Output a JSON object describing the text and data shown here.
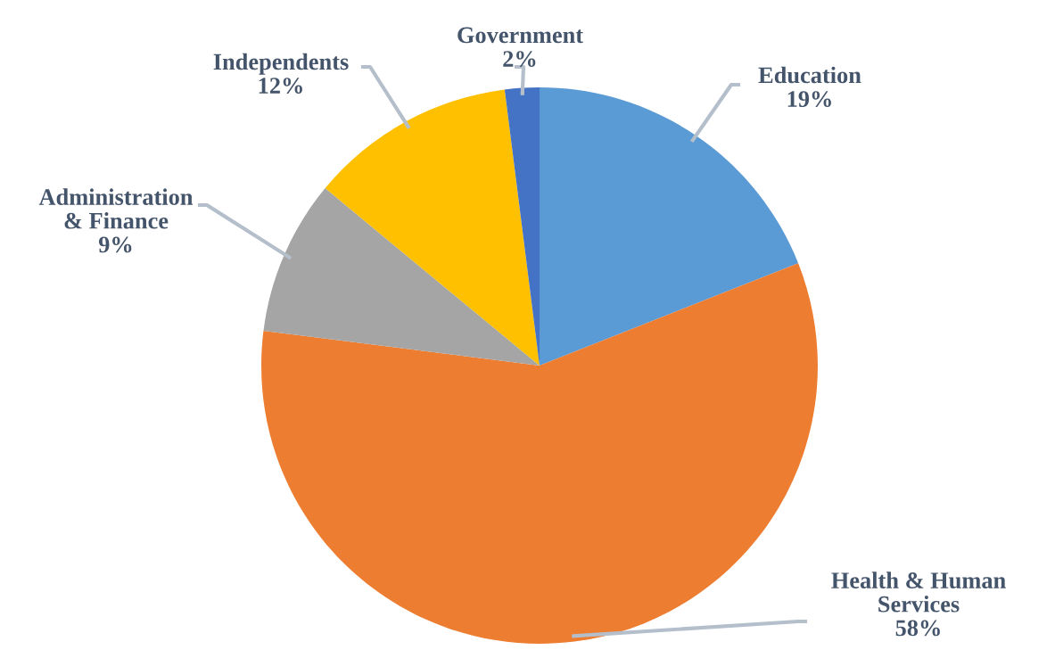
{
  "chart_data": {
    "type": "pie",
    "categories": [
      "Education",
      "Health & Human\nServices",
      "Administration\n& Finance",
      "Independents",
      "Government"
    ],
    "values": [
      19,
      58,
      9,
      12,
      2
    ],
    "colors": [
      "#5b9bd5",
      "#ed7d31",
      "#a5a5a5",
      "#ffc000",
      "#4472c4"
    ],
    "value_labels": [
      "19%",
      "58%",
      "9%",
      "12%",
      "2%"
    ]
  }
}
